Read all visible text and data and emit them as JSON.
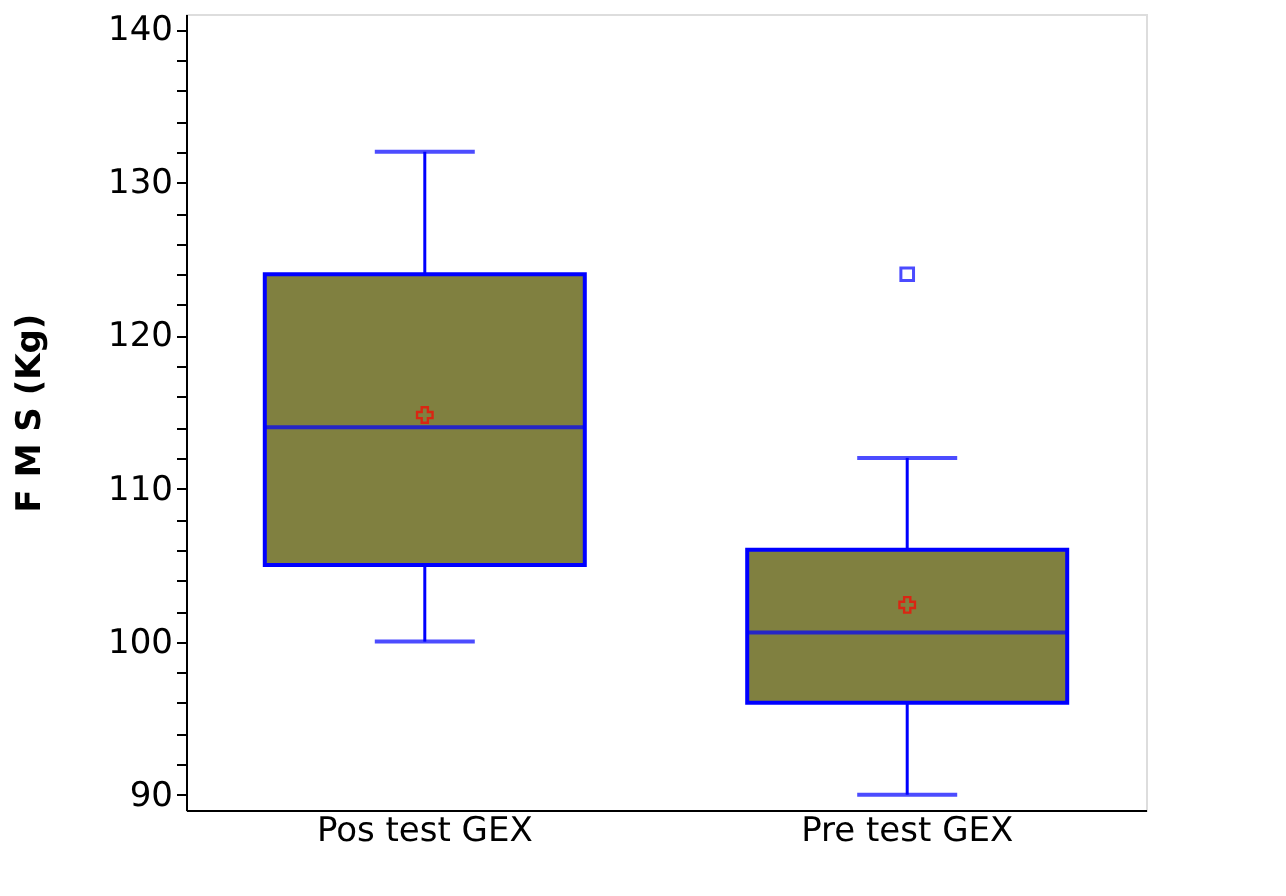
{
  "chart_data": {
    "type": "box",
    "ylabel": "F M S (Kg)",
    "categories": [
      "Pos test GEX",
      "Pre test GEX"
    ],
    "series": [
      {
        "color": "#808040",
        "boxes": [
          {
            "low": 100,
            "q1": 105,
            "median": 114,
            "q3": 124,
            "high": 132,
            "mean": 114.8
          },
          {
            "low": 90,
            "q1": 96,
            "median": 100.6,
            "q3": 106,
            "high": 112,
            "mean": 102.4,
            "outliers": [
              124
            ]
          }
        ]
      }
    ],
    "ylim": [
      89,
      141
    ],
    "yticks": [
      90,
      {
        "value": 92,
        "label": null
      },
      {
        "value": 94,
        "label": null
      },
      {
        "value": 96,
        "label": null
      },
      {
        "value": 98,
        "label": null
      },
      100,
      {
        "value": 102,
        "label": null
      },
      {
        "value": 104,
        "label": null
      },
      {
        "value": 106,
        "label": null
      },
      {
        "value": 108,
        "label": null
      },
      110,
      {
        "value": 112,
        "label": null
      },
      {
        "value": 114,
        "label": null
      },
      {
        "value": 116,
        "label": null
      },
      {
        "value": 118,
        "label": null
      },
      120,
      {
        "value": 122,
        "label": null
      },
      {
        "value": 124,
        "label": null
      },
      {
        "value": 126,
        "label": null
      },
      {
        "value": 128,
        "label": null
      },
      130,
      {
        "value": 132,
        "label": null
      },
      {
        "value": 134,
        "label": null
      },
      {
        "value": 136,
        "label": null
      },
      {
        "value": 138,
        "label": null
      },
      140
    ],
    "grid": false
  }
}
